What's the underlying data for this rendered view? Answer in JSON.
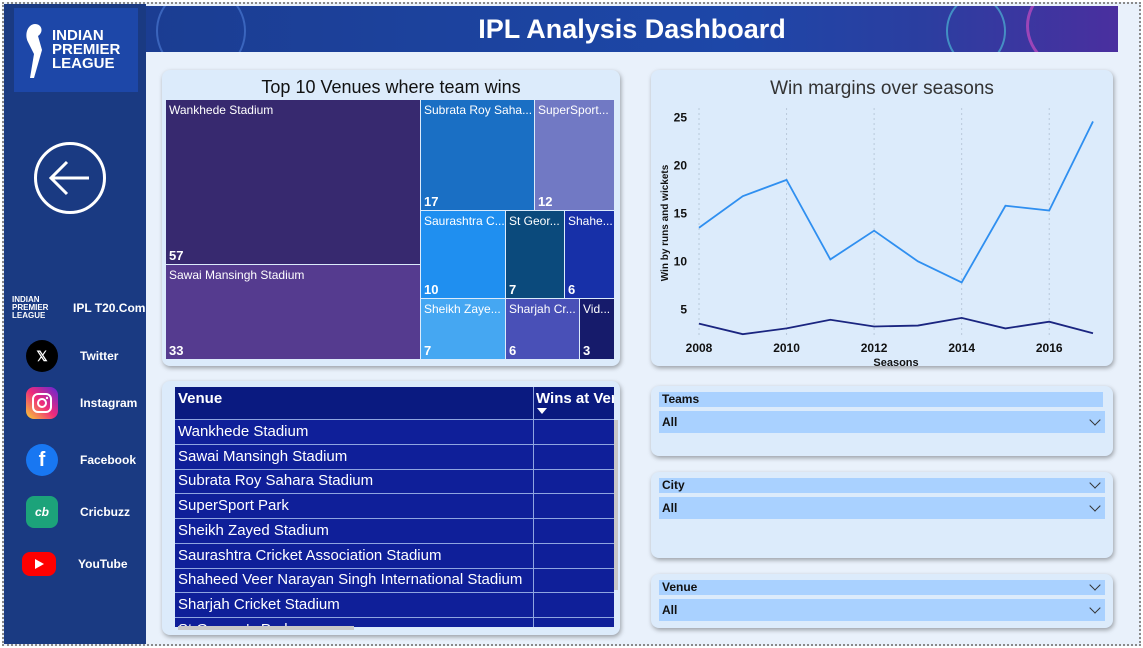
{
  "header": {
    "title": "IPL Analysis Dashboard"
  },
  "sidebar": {
    "logo_text": [
      "INDIAN",
      "PREMIER",
      "LEAGUE"
    ],
    "back_icon": "arrow-left-circle-icon",
    "links": [
      {
        "label": "IPL T20.Com",
        "icon": "ipl-logo-icon"
      },
      {
        "label": "Twitter",
        "icon": "x-logo-icon",
        "color": "#000000"
      },
      {
        "label": "Instagram",
        "icon": "instagram-icon",
        "color": "#d6249f"
      },
      {
        "label": "Facebook",
        "icon": "facebook-icon",
        "color": "#1877f2"
      },
      {
        "label": "Cricbuzz",
        "icon": "cricbuzz-icon",
        "color": "#1ca37a"
      },
      {
        "label": "YouTube",
        "icon": "youtube-icon",
        "color": "#ff0000"
      }
    ]
  },
  "treemap": {
    "title": "Top 10 Venues where team wins",
    "tiles": [
      {
        "name": "Wankhede Stadium",
        "value": "57",
        "color": "#37296f"
      },
      {
        "name": "Sawai Mansingh Stadium",
        "value": "33",
        "color": "#553b8f"
      },
      {
        "name": "Subrata Roy Saha...",
        "value": "17",
        "color": "#1a6fc4"
      },
      {
        "name": "SuperSport...",
        "value": "12",
        "color": "#7179c4"
      },
      {
        "name": "Saurashtra C...",
        "value": "10",
        "color": "#1f8ff0"
      },
      {
        "name": "St Geor...",
        "value": "7",
        "color": "#0b4a7c"
      },
      {
        "name": "Shahe...",
        "value": "6",
        "color": "#1730a8"
      },
      {
        "name": "Sheikh Zaye...",
        "value": "7",
        "color": "#45a7f2"
      },
      {
        "name": "Sharjah Cr...",
        "value": "6",
        "color": "#4950b7"
      },
      {
        "name": "Vid...",
        "value": "3",
        "color": "#161b6b"
      }
    ]
  },
  "line_chart": {
    "title": "Win margins over seasons",
    "chart_data": {
      "type": "line",
      "title": "Win margins over seasons",
      "xlabel": "Seasons",
      "ylabel": "Win by runs and wickets",
      "x": [
        2008,
        2009,
        2010,
        2011,
        2012,
        2013,
        2014,
        2015,
        2016,
        2017
      ],
      "x_ticks": [
        "2008",
        "2010",
        "2012",
        "2014",
        "2016"
      ],
      "y_ticks": [
        "5",
        "10",
        "15",
        "20",
        "25"
      ],
      "ylim": [
        2,
        26
      ],
      "series": [
        {
          "values": [
            13.5,
            16.8,
            18.5,
            10.2,
            13.2,
            10.0,
            7.8,
            15.8,
            15.3,
            24.6
          ],
          "color": "#2f8ff0"
        },
        {
          "values": [
            3.5,
            2.4,
            3.0,
            3.9,
            3.2,
            3.3,
            4.1,
            3.0,
            3.7,
            2.5
          ],
          "color": "#1a2580"
        }
      ]
    }
  },
  "table": {
    "headers": [
      "Venue",
      "Wins at Ver"
    ],
    "rows": [
      "Wankhede Stadium",
      "Sawai Mansingh Stadium",
      "Subrata Roy Sahara Stadium",
      "SuperSport Park",
      "Sheikh Zayed Stadium",
      "Saurashtra Cricket Association Stadium",
      "Shaheed Veer Narayan Singh International Stadium",
      "Sharjah Cricket Stadium",
      "St George's Park"
    ]
  },
  "slicers": [
    {
      "label": "Teams",
      "value": "All"
    },
    {
      "label": "City",
      "value": "All"
    },
    {
      "label": "Venue",
      "value": "All"
    }
  ]
}
